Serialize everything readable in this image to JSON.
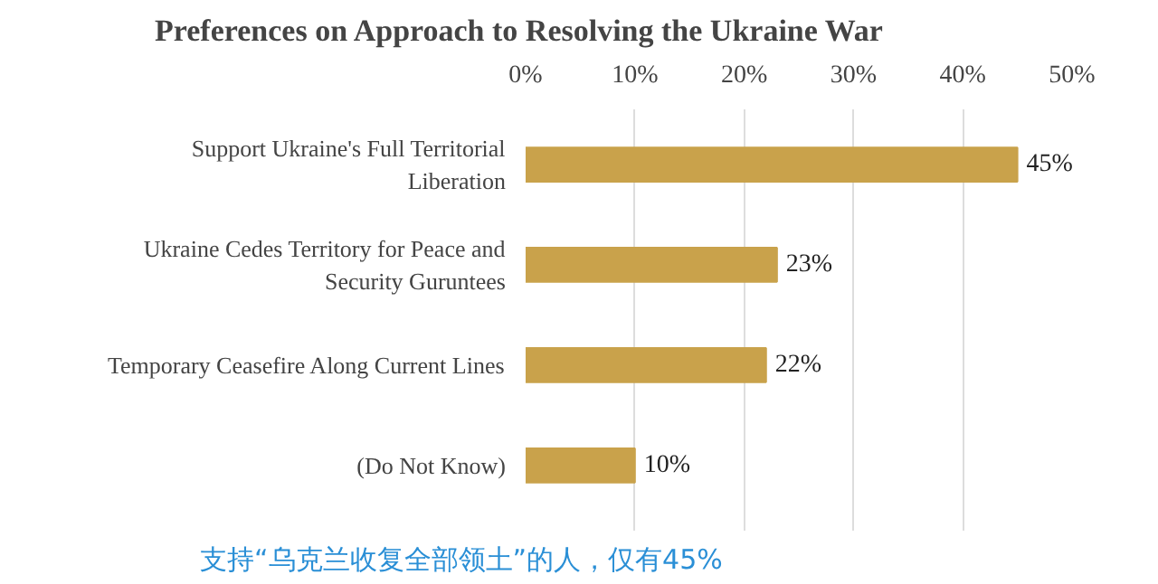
{
  "chart_data": {
    "type": "bar",
    "orientation": "horizontal",
    "title": "Preferences on Approach to Resolving the Ukraine War",
    "categories": [
      "Support Ukraine's Full Territorial Liberation",
      "Ukraine Cedes Territory for Peace and Security Guruntees",
      "Temporary Ceasefire Along Current Lines",
      "(Do Not Know)"
    ],
    "values": [
      45,
      23,
      22,
      10
    ],
    "color": "#c9a24b",
    "value_labels": [
      "45%",
      "23%",
      "22%",
      "10%"
    ],
    "xlim": [
      0,
      50
    ],
    "xticks": [
      {
        "value": 0,
        "label": "0%"
      },
      {
        "value": 10,
        "label": "10%"
      },
      {
        "value": 20,
        "label": "20%"
      },
      {
        "value": 30,
        "label": "30%"
      },
      {
        "value": 40,
        "label": "40%"
      },
      {
        "value": 50,
        "label": "50%"
      }
    ],
    "grid": "x",
    "annotations": [
      "支持“乌克兰收复全部领土”的人，仅有45%"
    ]
  }
}
